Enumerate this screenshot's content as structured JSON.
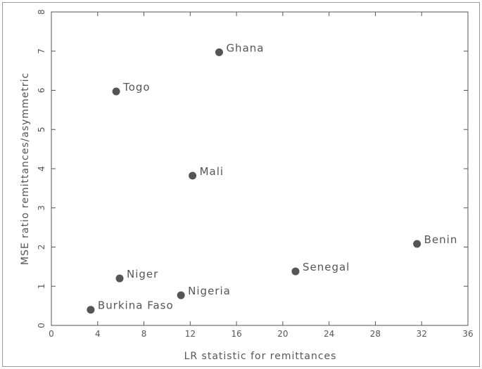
{
  "chart_data": {
    "type": "scatter",
    "xlabel": "LR statistic for remittances",
    "ylabel": "MSE ratio remittances/asymmetric",
    "xlim": [
      0,
      36
    ],
    "ylim": [
      0,
      8
    ],
    "xticks": [
      "0",
      "4",
      "8",
      "12",
      "16",
      "20",
      "24",
      "28",
      "32",
      "36"
    ],
    "yticks": [
      "0",
      "1",
      "2",
      "3",
      "4",
      "5",
      "6",
      "7",
      "8"
    ],
    "grid": false,
    "points": [
      {
        "label": "Ghana",
        "x": 14.5,
        "y": 6.97
      },
      {
        "label": "Togo",
        "x": 5.6,
        "y": 5.97
      },
      {
        "label": "Mali",
        "x": 12.2,
        "y": 3.82
      },
      {
        "label": "Benin",
        "x": 31.6,
        "y": 2.08
      },
      {
        "label": "Senegal",
        "x": 21.1,
        "y": 1.38
      },
      {
        "label": "Niger",
        "x": 5.9,
        "y": 1.2
      },
      {
        "label": "Nigeria",
        "x": 11.2,
        "y": 0.77
      },
      {
        "label": "Burkina Faso",
        "x": 3.4,
        "y": 0.4
      }
    ],
    "colors": {
      "marker": "#555555",
      "axis": "#555555",
      "text": "#555555"
    }
  }
}
